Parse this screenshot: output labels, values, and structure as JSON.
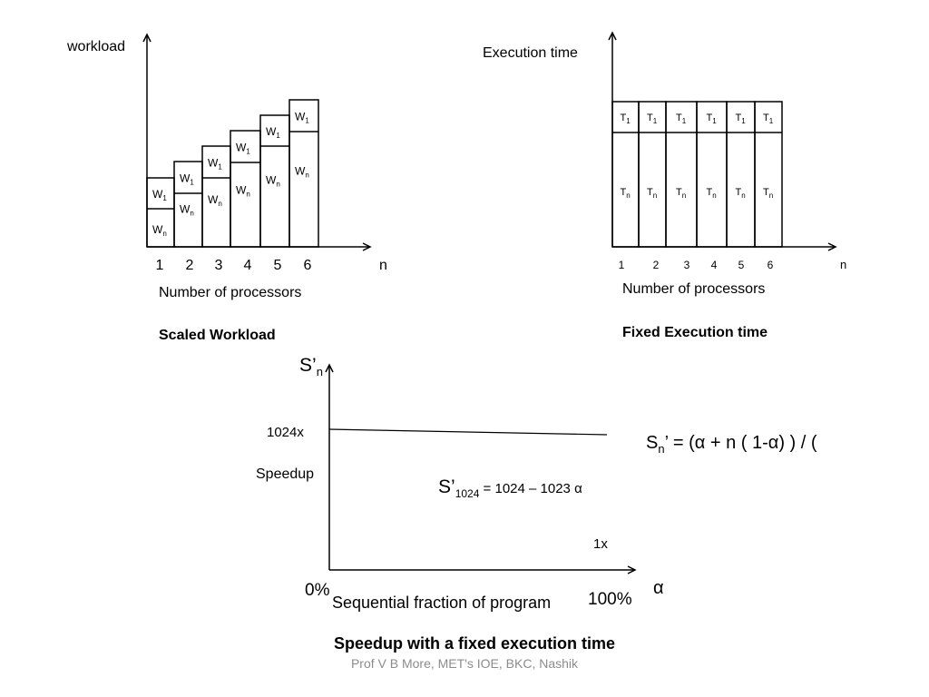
{
  "scaled": {
    "y_label": "workload",
    "x_label": "Number of processors",
    "title": "Scaled Workload",
    "n_label": "n",
    "ticks": [
      "1",
      "2",
      "3",
      "4",
      "5",
      "6"
    ],
    "w1": "W",
    "w1_sub": "1",
    "wn": "W",
    "wn_sub": "n"
  },
  "fixed": {
    "y_label": "Execution time",
    "x_label": "Number of processors",
    "title": "Fixed Execution time",
    "n_label": "n",
    "ticks": [
      "1",
      "2",
      "3",
      "4",
      "5",
      "6"
    ],
    "t1": "T",
    "t1_sub": "1",
    "tn": "T",
    "tn_sub": "n"
  },
  "speedup": {
    "y_label": "S’",
    "y_label_sub": "n",
    "tick_1024": "1024x",
    "speedup_label": "Speedup",
    "formula_lhs": "S’",
    "formula_sub": "1024",
    "formula_rhs": " = 1024 – 1023 α",
    "tick_1x": "1x",
    "x_start": "0%",
    "x_end": "100%",
    "x_label": "Sequential fraction of program",
    "alpha": "α",
    "title": "Speedup with a fixed execution time"
  },
  "general_formula": {
    "s": "S",
    "sub": "n",
    "rest": "’ = (α + n ( 1-α) ) / ("
  },
  "footer": "Prof V B More, MET's IOE, BKC, Nashik"
}
